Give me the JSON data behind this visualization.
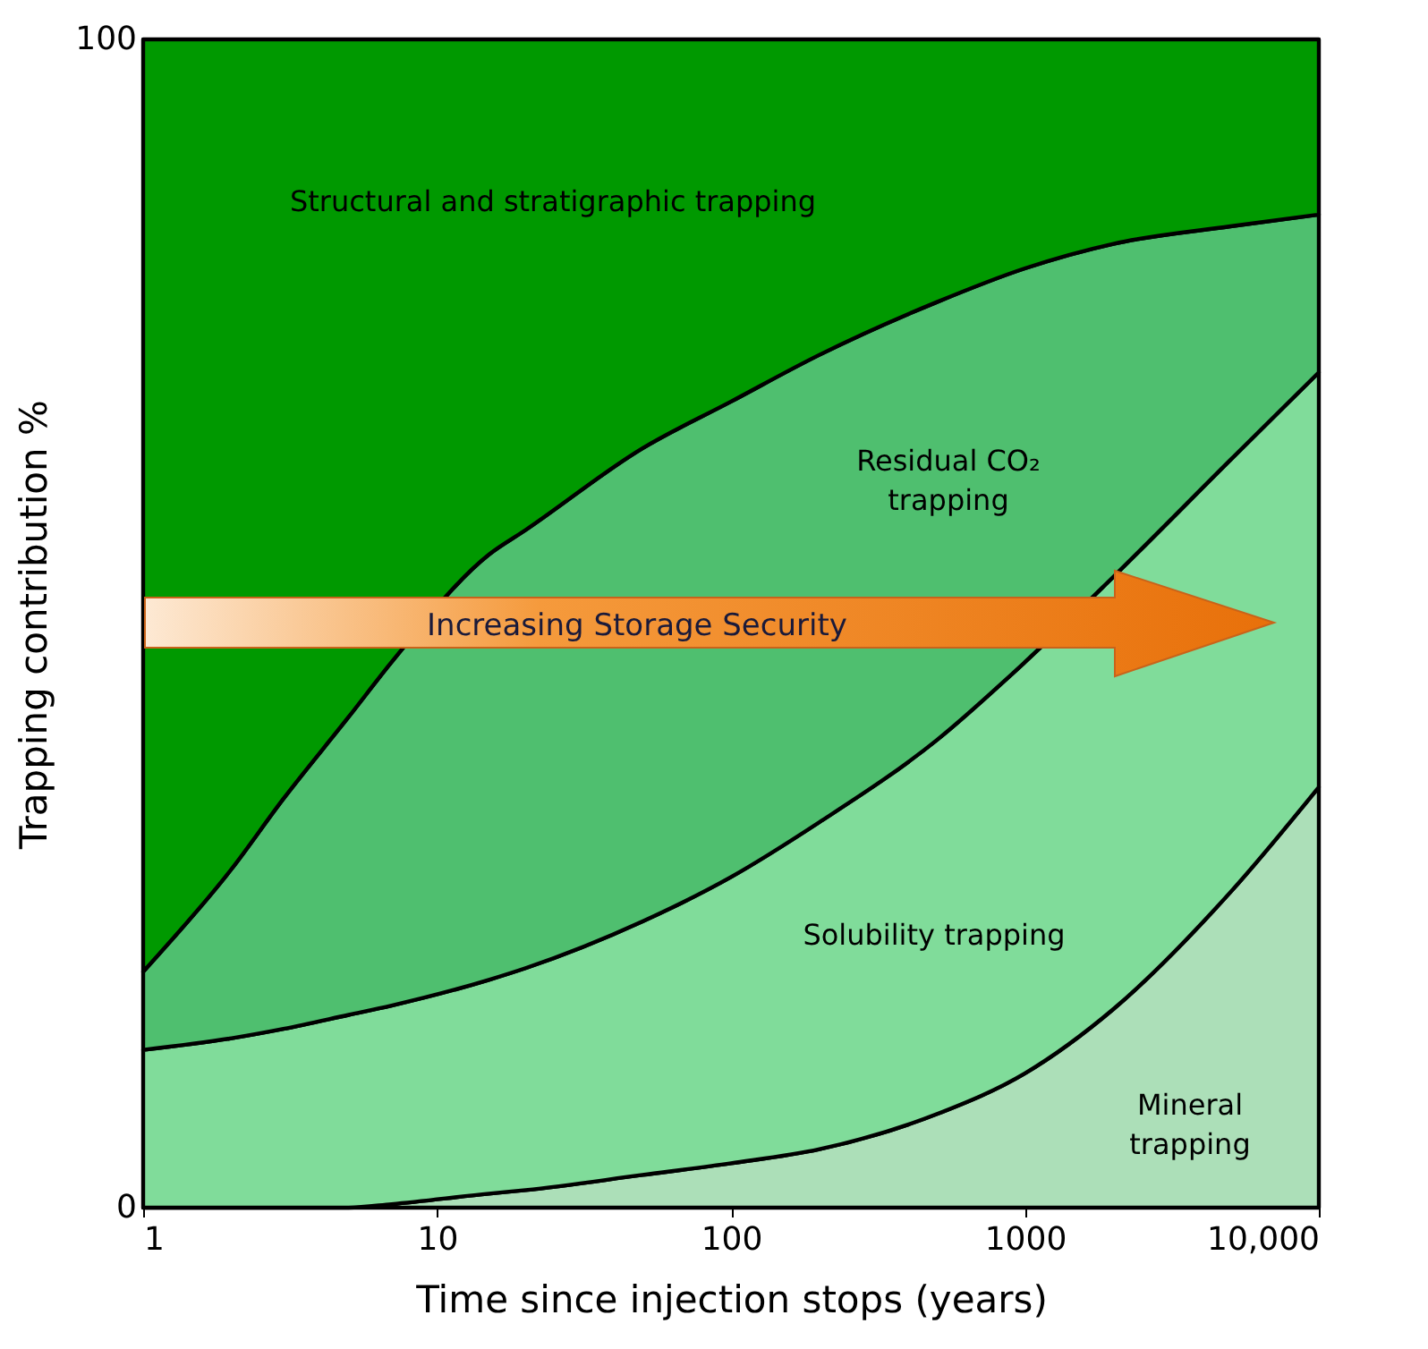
{
  "chart_data": {
    "type": "area",
    "stacked": true,
    "log": "x",
    "xlabel": "Time since injection stops (years)",
    "ylabel": "Trapping contribution %",
    "x": [
      1,
      2,
      3,
      5,
      7,
      15,
      20,
      50,
      100,
      200,
      500,
      1000,
      2000,
      5000,
      10000
    ],
    "series": [
      {
        "name": "Mineral trapping",
        "color": "#acdfb8",
        "values": [
          0,
          0,
          0,
          0,
          0.3,
          1.2,
          1.5,
          2.8,
          3.8,
          5,
          8,
          11.5,
          17,
          27,
          36
        ]
      },
      {
        "name": "Solubility trapping",
        "color": "#80dc9a",
        "values": [
          13.5,
          14.5,
          15.3,
          16.5,
          17,
          18.3,
          19,
          21.7,
          24.5,
          28,
          32,
          35.2,
          37,
          37,
          35.5
        ]
      },
      {
        "name": "Residual CO₂ trapping",
        "color": "#4fbf6f",
        "values": [
          6.7,
          14.5,
          19.7,
          25.5,
          29.4,
          36.4,
          37.5,
          40.5,
          40.7,
          40,
          37.5,
          33.7,
          28.5,
          20,
          13.5
        ]
      },
      {
        "name": "Structural and stratigraphic trapping",
        "color": "#009900",
        "values": [
          79.8,
          71,
          65,
          58,
          53.3,
          44.1,
          42,
          35,
          31,
          27,
          22.5,
          19.6,
          17.5,
          16,
          15
        ]
      }
    ],
    "xlim": [
      1,
      10000
    ],
    "xticks": [
      1,
      10,
      100,
      1000,
      {
        "value": 10000,
        "label": "10,000"
      }
    ],
    "ylim": [
      0,
      100
    ],
    "yticks": [
      0,
      100
    ],
    "annotations": [
      "Increasing Storage Security"
    ]
  }
}
